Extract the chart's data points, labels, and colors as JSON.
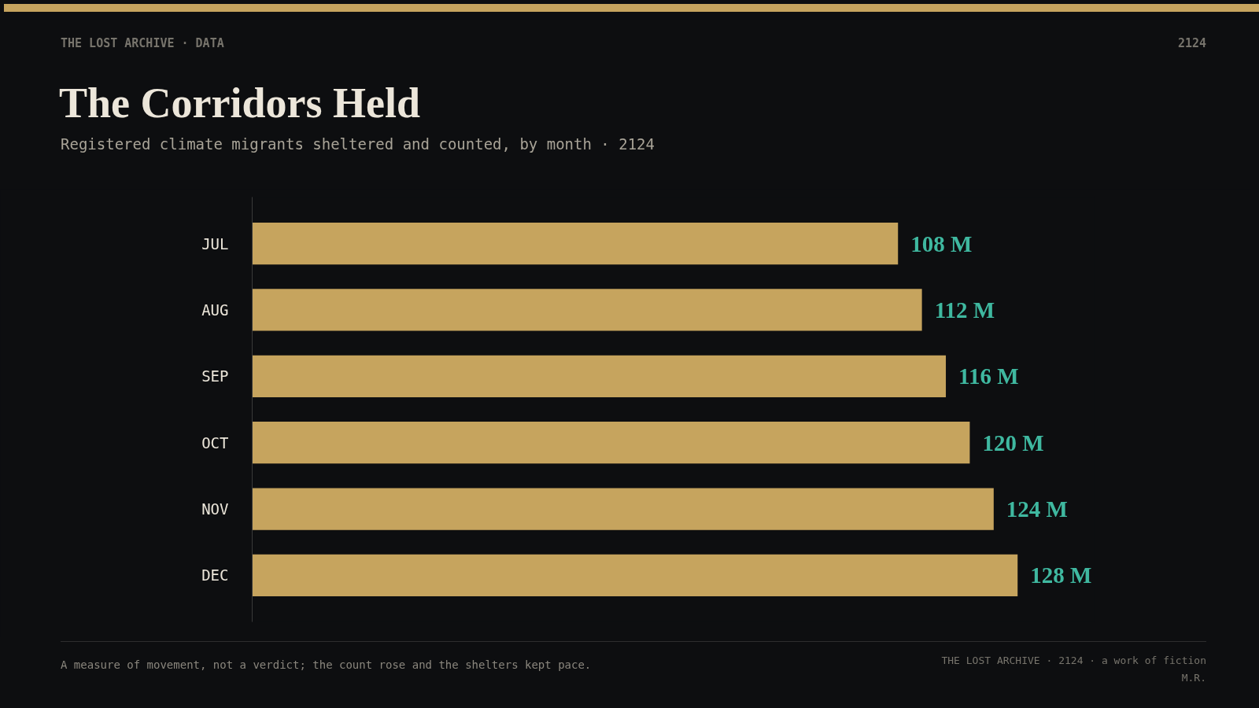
{
  "chart_data": {
    "type": "bar",
    "orientation": "horizontal",
    "title": "The Corridors Held",
    "subtitle": "Registered climate migrants sheltered and counted, by month · 2124",
    "categories": [
      "JUL",
      "AUG",
      "SEP",
      "OCT",
      "NOV",
      "DEC"
    ],
    "values": [
      108,
      112,
      116,
      120,
      124,
      128
    ],
    "value_labels": [
      "108 M",
      "112 M",
      "116 M",
      "120 M",
      "124 M",
      "128 M"
    ],
    "color": "#c6a45e",
    "grid": false,
    "annotations": [
      "THE LOST ARCHIVE · DATA",
      "2124",
      "A measure of movement, not a verdict; the count rose and the shelters kept pace.",
      "THE LOST ARCHIVE · 2124 · a work of fiction",
      "M.R."
    ]
  }
}
